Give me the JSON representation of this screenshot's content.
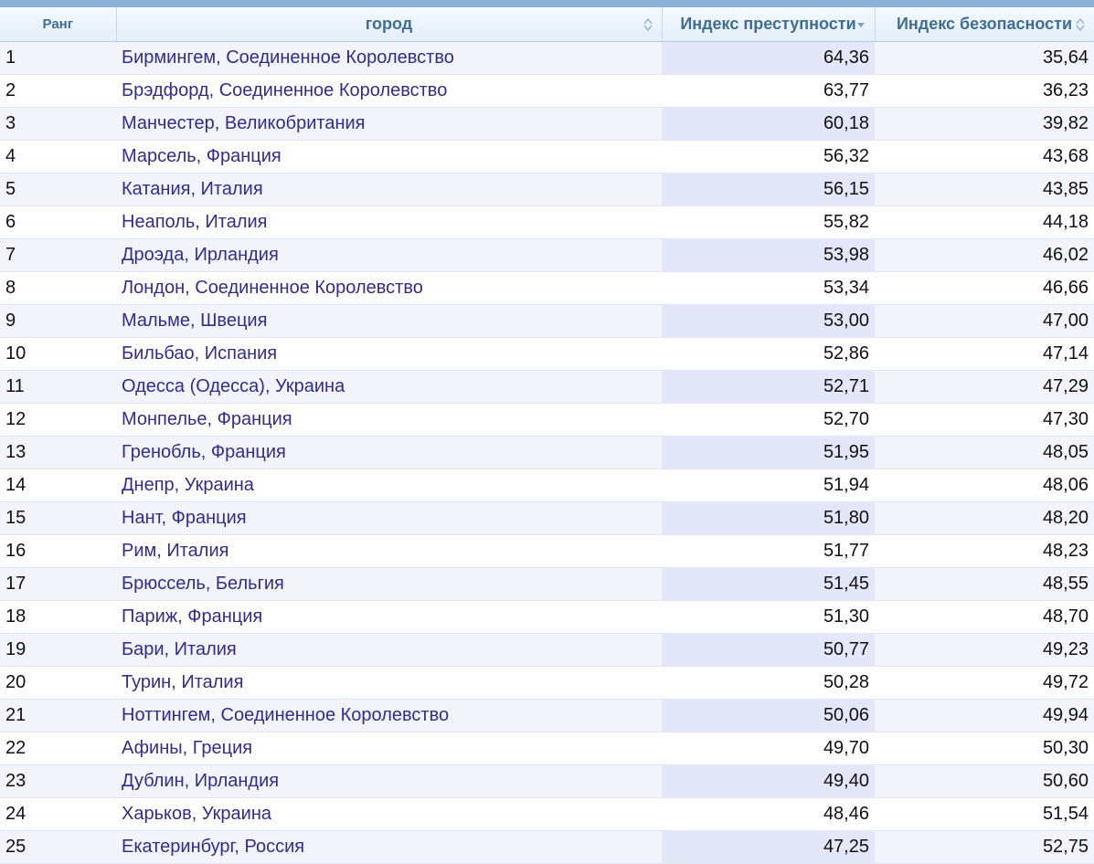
{
  "table": {
    "headers": {
      "rank": "Ранг",
      "city": "город",
      "crime": "Индекс преступности",
      "safety": "Индекс безопасности"
    },
    "rows": [
      {
        "rank": "1",
        "city": "Бирмингем, Соединенное Королевство",
        "crime": "64,36",
        "safety": "35,64"
      },
      {
        "rank": "2",
        "city": "Брэдфорд, Соединенное Королевство",
        "crime": "63,77",
        "safety": "36,23"
      },
      {
        "rank": "3",
        "city": "Манчестер, Великобритания",
        "crime": "60,18",
        "safety": "39,82"
      },
      {
        "rank": "4",
        "city": "Марсель, Франция",
        "crime": "56,32",
        "safety": "43,68"
      },
      {
        "rank": "5",
        "city": "Катания, Италия",
        "crime": "56,15",
        "safety": "43,85"
      },
      {
        "rank": "6",
        "city": "Неаполь, Италия",
        "crime": "55,82",
        "safety": "44,18"
      },
      {
        "rank": "7",
        "city": "Дроэда, Ирландия",
        "crime": "53,98",
        "safety": "46,02"
      },
      {
        "rank": "8",
        "city": "Лондон, Соединенное Королевство",
        "crime": "53,34",
        "safety": "46,66"
      },
      {
        "rank": "9",
        "city": "Мальме, Швеция",
        "crime": "53,00",
        "safety": "47,00"
      },
      {
        "rank": "10",
        "city": "Бильбао, Испания",
        "crime": "52,86",
        "safety": "47,14"
      },
      {
        "rank": "11",
        "city": "Одесса (Одесса), Украина",
        "crime": "52,71",
        "safety": "47,29"
      },
      {
        "rank": "12",
        "city": "Монпелье, Франция",
        "crime": "52,70",
        "safety": "47,30"
      },
      {
        "rank": "13",
        "city": "Гренобль, Франция",
        "crime": "51,95",
        "safety": "48,05"
      },
      {
        "rank": "14",
        "city": "Днепр, Украина",
        "crime": "51,94",
        "safety": "48,06"
      },
      {
        "rank": "15",
        "city": "Нант, Франция",
        "crime": "51,80",
        "safety": "48,20"
      },
      {
        "rank": "16",
        "city": "Рим, Италия",
        "crime": "51,77",
        "safety": "48,23"
      },
      {
        "rank": "17",
        "city": "Брюссель, Бельгия",
        "crime": "51,45",
        "safety": "48,55"
      },
      {
        "rank": "18",
        "city": "Париж, Франция",
        "crime": "51,30",
        "safety": "48,70"
      },
      {
        "rank": "19",
        "city": "Бари, Италия",
        "crime": "50,77",
        "safety": "49,23"
      },
      {
        "rank": "20",
        "city": "Турин, Италия",
        "crime": "50,28",
        "safety": "49,72"
      },
      {
        "rank": "21",
        "city": "Ноттингем, Соединенное Королевство",
        "crime": "50,06",
        "safety": "49,94"
      },
      {
        "rank": "22",
        "city": "Афины, Греция",
        "crime": "49,70",
        "safety": "50,30"
      },
      {
        "rank": "23",
        "city": "Дублин, Ирландия",
        "crime": "49,40",
        "safety": "50,60"
      },
      {
        "rank": "24",
        "city": "Харьков, Украина",
        "crime": "48,46",
        "safety": "51,54"
      },
      {
        "rank": "25",
        "city": "Екатеринбург, Россия",
        "crime": "47,25",
        "safety": "52,75"
      }
    ]
  },
  "colors": {
    "header_text": "#3f6d94",
    "city_text": "#322c8c",
    "sort_arrow": "#9ab8d6",
    "sort_arrow_active": "#7a9cc0"
  },
  "icons": {
    "city_sort": "sort-both-icon",
    "crime_sort": "sort-desc-icon",
    "safety_sort": "sort-both-icon"
  }
}
